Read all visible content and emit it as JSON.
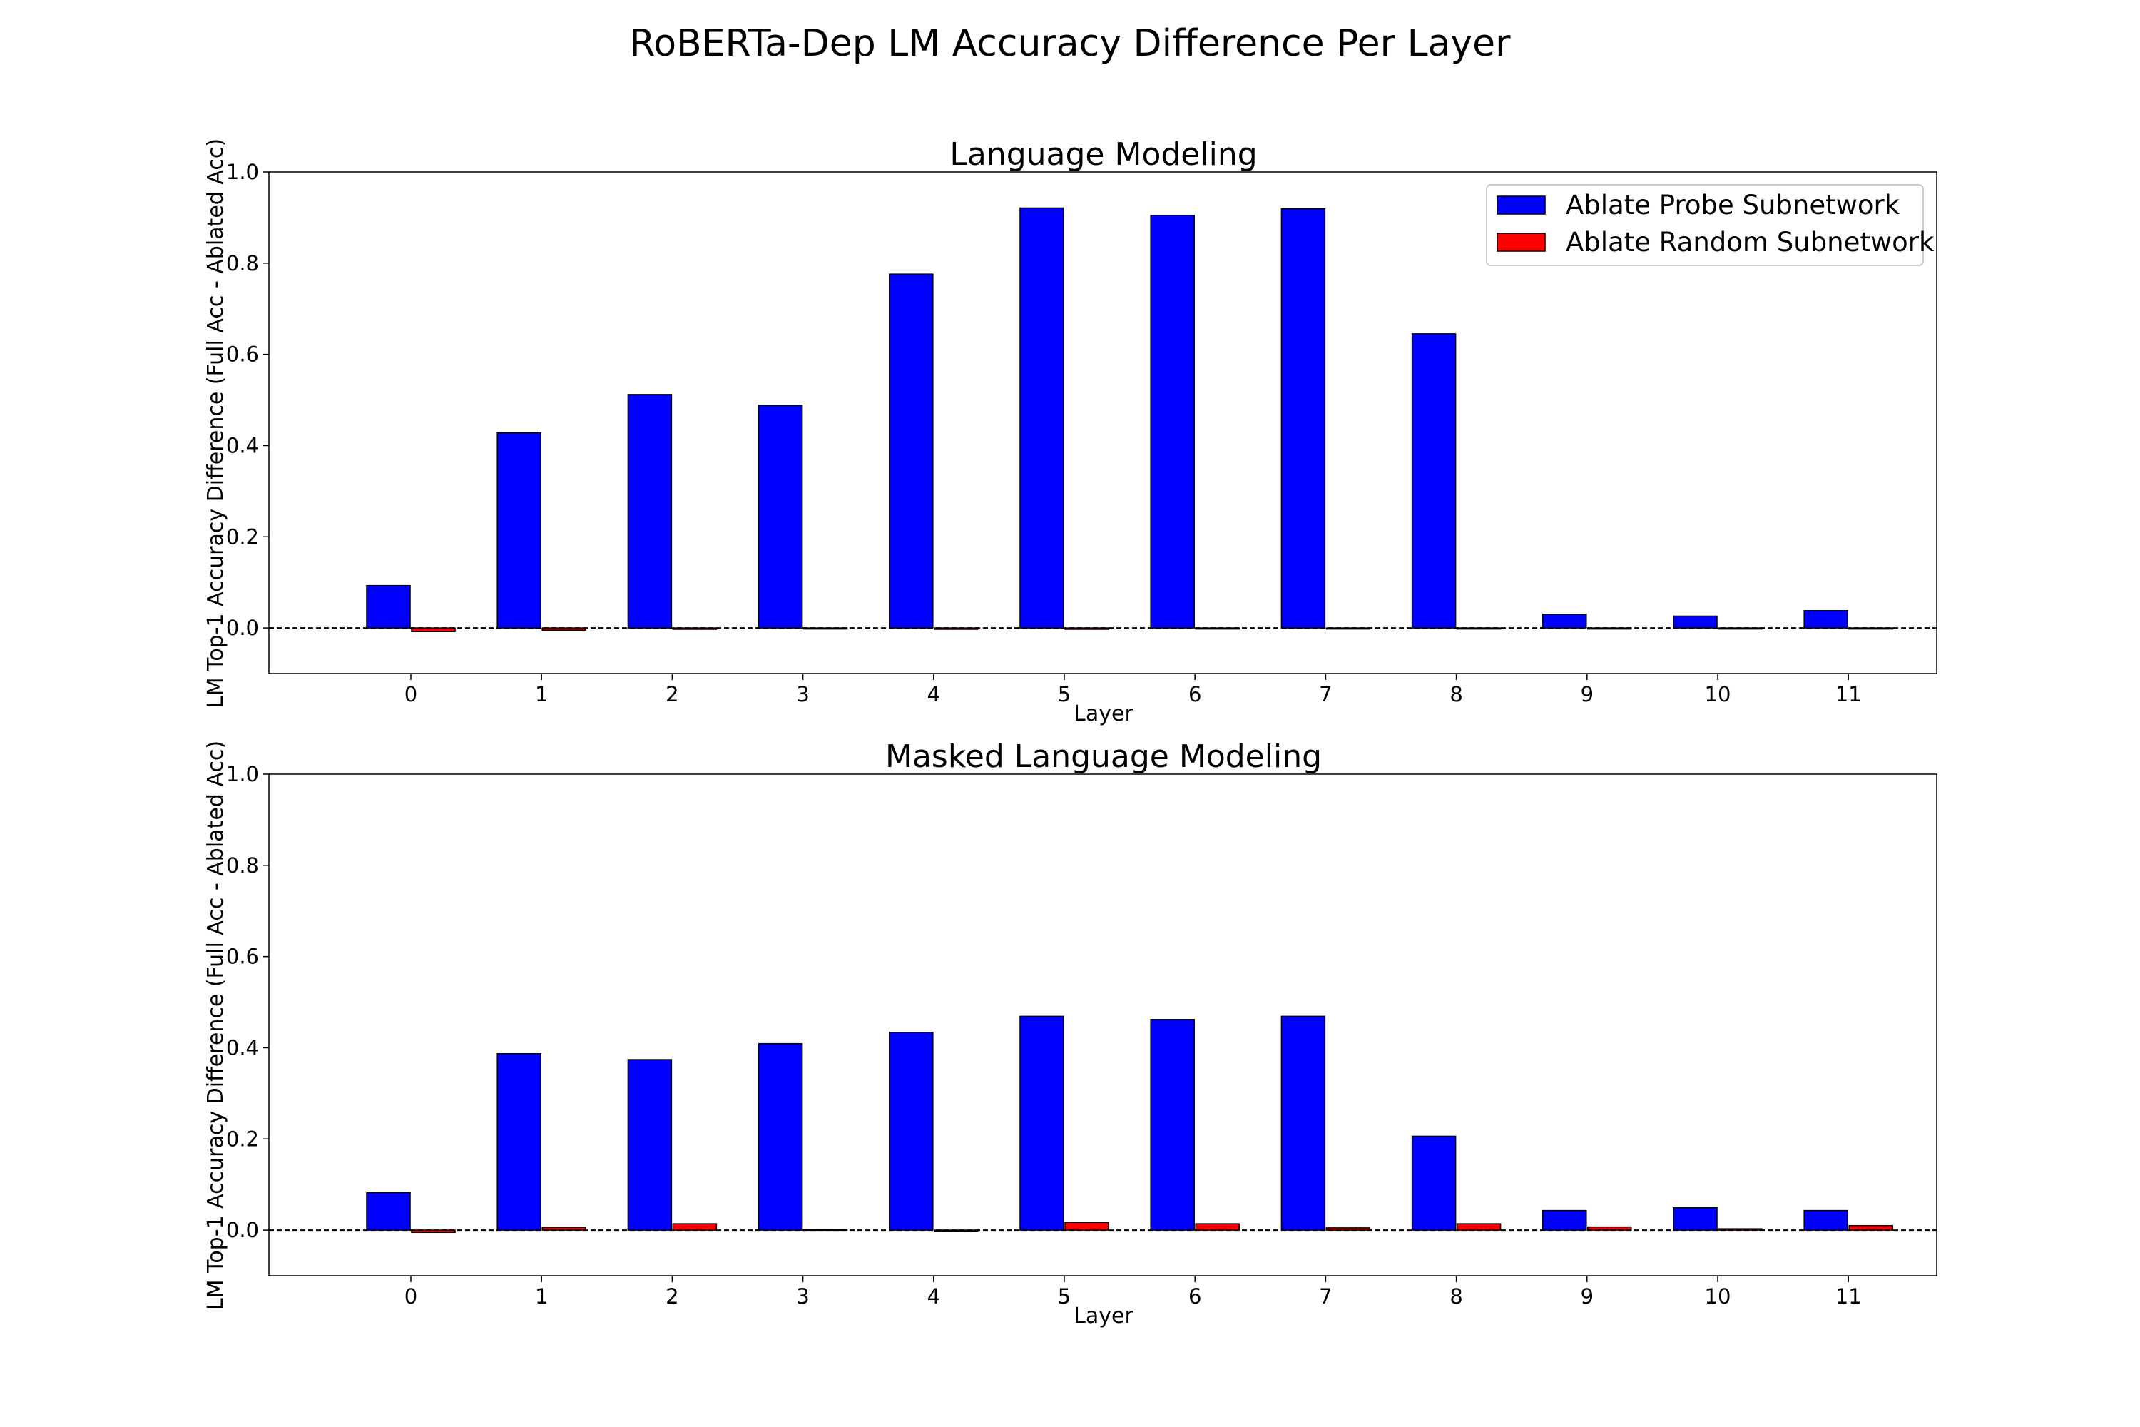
{
  "figure_title": "RoBERTa-Dep LM Accuracy Difference Per Layer",
  "colors": {
    "probe": "#0000ff",
    "random": "#ff0000",
    "edge": "#000000",
    "zero_line": "#000000"
  },
  "chart_data": [
    {
      "type": "bar",
      "title": "Language Modeling",
      "xlabel": "Layer",
      "ylabel": "LM Top-1 Accuracy Difference (Full Acc - Ablated Acc)",
      "categories": [
        "0",
        "1",
        "2",
        "3",
        "4",
        "5",
        "6",
        "7",
        "8",
        "9",
        "10",
        "11"
      ],
      "series": [
        {
          "name": "Ablate Probe Subnetwork",
          "color": "#0000ff",
          "values": [
            0.093,
            0.428,
            0.512,
            0.488,
            0.776,
            0.921,
            0.905,
            0.919,
            0.645,
            0.03,
            0.026,
            0.038
          ]
        },
        {
          "name": "Ablate Random Subnetwork",
          "color": "#ff0000",
          "values": [
            -0.008,
            -0.005,
            -0.003,
            -0.002,
            -0.003,
            -0.003,
            -0.001,
            -0.001,
            0.0,
            0.0,
            -0.001,
            -0.001
          ]
        }
      ],
      "ylim": [
        -0.1,
        1.0
      ],
      "yticks": [
        "0.0",
        "0.2",
        "0.4",
        "0.6",
        "0.8",
        "1.0"
      ],
      "zero_line": "dashed",
      "grid": false,
      "legend": "upper right"
    },
    {
      "type": "bar",
      "title": "Masked Language Modeling",
      "xlabel": "Layer",
      "ylabel": "LM Top-1 Accuracy Difference (Full Acc - Ablated Acc)",
      "categories": [
        "0",
        "1",
        "2",
        "3",
        "4",
        "5",
        "6",
        "7",
        "8",
        "9",
        "10",
        "11"
      ],
      "series": [
        {
          "name": "Ablate Probe Subnetwork",
          "color": "#0000ff",
          "values": [
            0.082,
            0.387,
            0.374,
            0.409,
            0.434,
            0.469,
            0.462,
            0.469,
            0.206,
            0.043,
            0.049,
            0.043
          ]
        },
        {
          "name": "Ablate Random Subnetwork",
          "color": "#ff0000",
          "values": [
            -0.005,
            0.006,
            0.014,
            0.002,
            -0.002,
            0.017,
            0.014,
            0.005,
            0.014,
            0.007,
            0.003,
            0.01
          ]
        }
      ],
      "ylim": [
        -0.1,
        1.0
      ],
      "yticks": [
        "0.0",
        "0.2",
        "0.4",
        "0.6",
        "0.8",
        "1.0"
      ],
      "zero_line": "dashed",
      "grid": false
    }
  ]
}
